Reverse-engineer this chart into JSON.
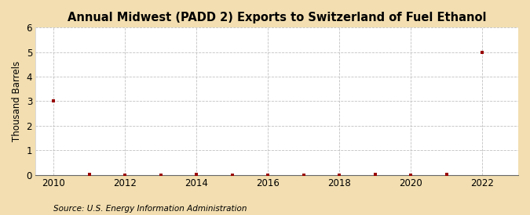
{
  "title": "Annual Midwest (PADD 2) Exports to Switzerland of Fuel Ethanol",
  "ylabel": "Thousand Barrels",
  "source": "Source: U.S. Energy Information Administration",
  "background_color": "#f2deb0",
  "plot_background_color": "#ffffff",
  "x_data": [
    2010,
    2011,
    2012,
    2013,
    2014,
    2015,
    2016,
    2017,
    2018,
    2019,
    2020,
    2021,
    2022
  ],
  "y_data": [
    3,
    0.02,
    0,
    0,
    0.02,
    0,
    0,
    0,
    0,
    0.02,
    0,
    0.02,
    5
  ],
  "marker_color": "#990000",
  "marker_size": 3.5,
  "xlim": [
    2009.5,
    2023.0
  ],
  "ylim": [
    0,
    6
  ],
  "xticks": [
    2010,
    2012,
    2014,
    2016,
    2018,
    2020,
    2022
  ],
  "yticks": [
    0,
    1,
    2,
    3,
    4,
    5,
    6
  ],
  "grid_color": "#bbbbbb",
  "title_fontsize": 10.5,
  "tick_fontsize": 8.5,
  "ylabel_fontsize": 8.5,
  "source_fontsize": 7.5
}
